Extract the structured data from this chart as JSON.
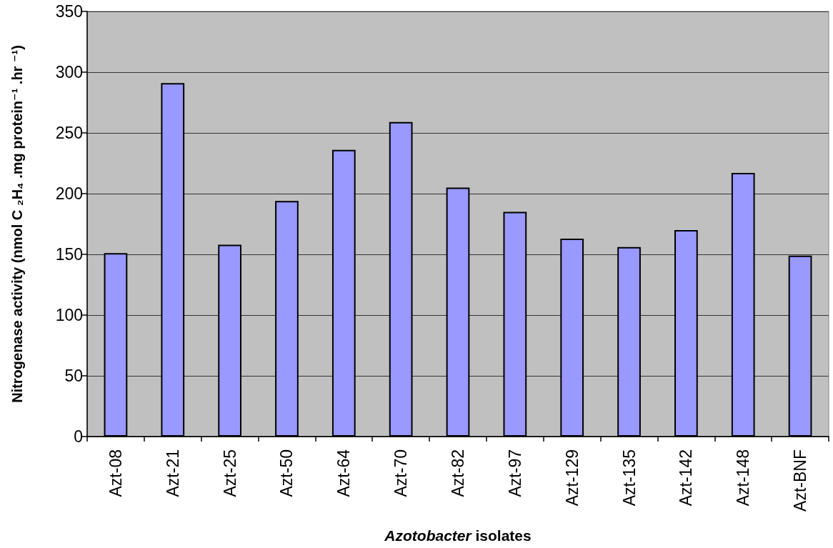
{
  "chart_data": {
    "type": "bar",
    "xlabel": "Azotobacter isolates",
    "ylabel": "Nitrogenase activity (nmol C ₂H₄ .mg protein⁻¹ .hr ⁻¹)",
    "categories": [
      "Azt-08",
      "Azt-21",
      "Azt-25",
      "Azt-50",
      "Azt-64",
      "Azt-70",
      "Azt-82",
      "Azt-97",
      "Azt-129",
      "Azt-135",
      "Azt-142",
      "Azt-148",
      "Azt-BNF"
    ],
    "values": [
      151,
      291,
      158,
      194,
      236,
      259,
      205,
      185,
      163,
      156,
      170,
      217,
      149
    ],
    "color": "#9999ff",
    "ylim": [
      0,
      350
    ],
    "yticks": [
      0,
      50,
      100,
      150,
      200,
      250,
      300,
      350
    ],
    "grid": "y"
  }
}
